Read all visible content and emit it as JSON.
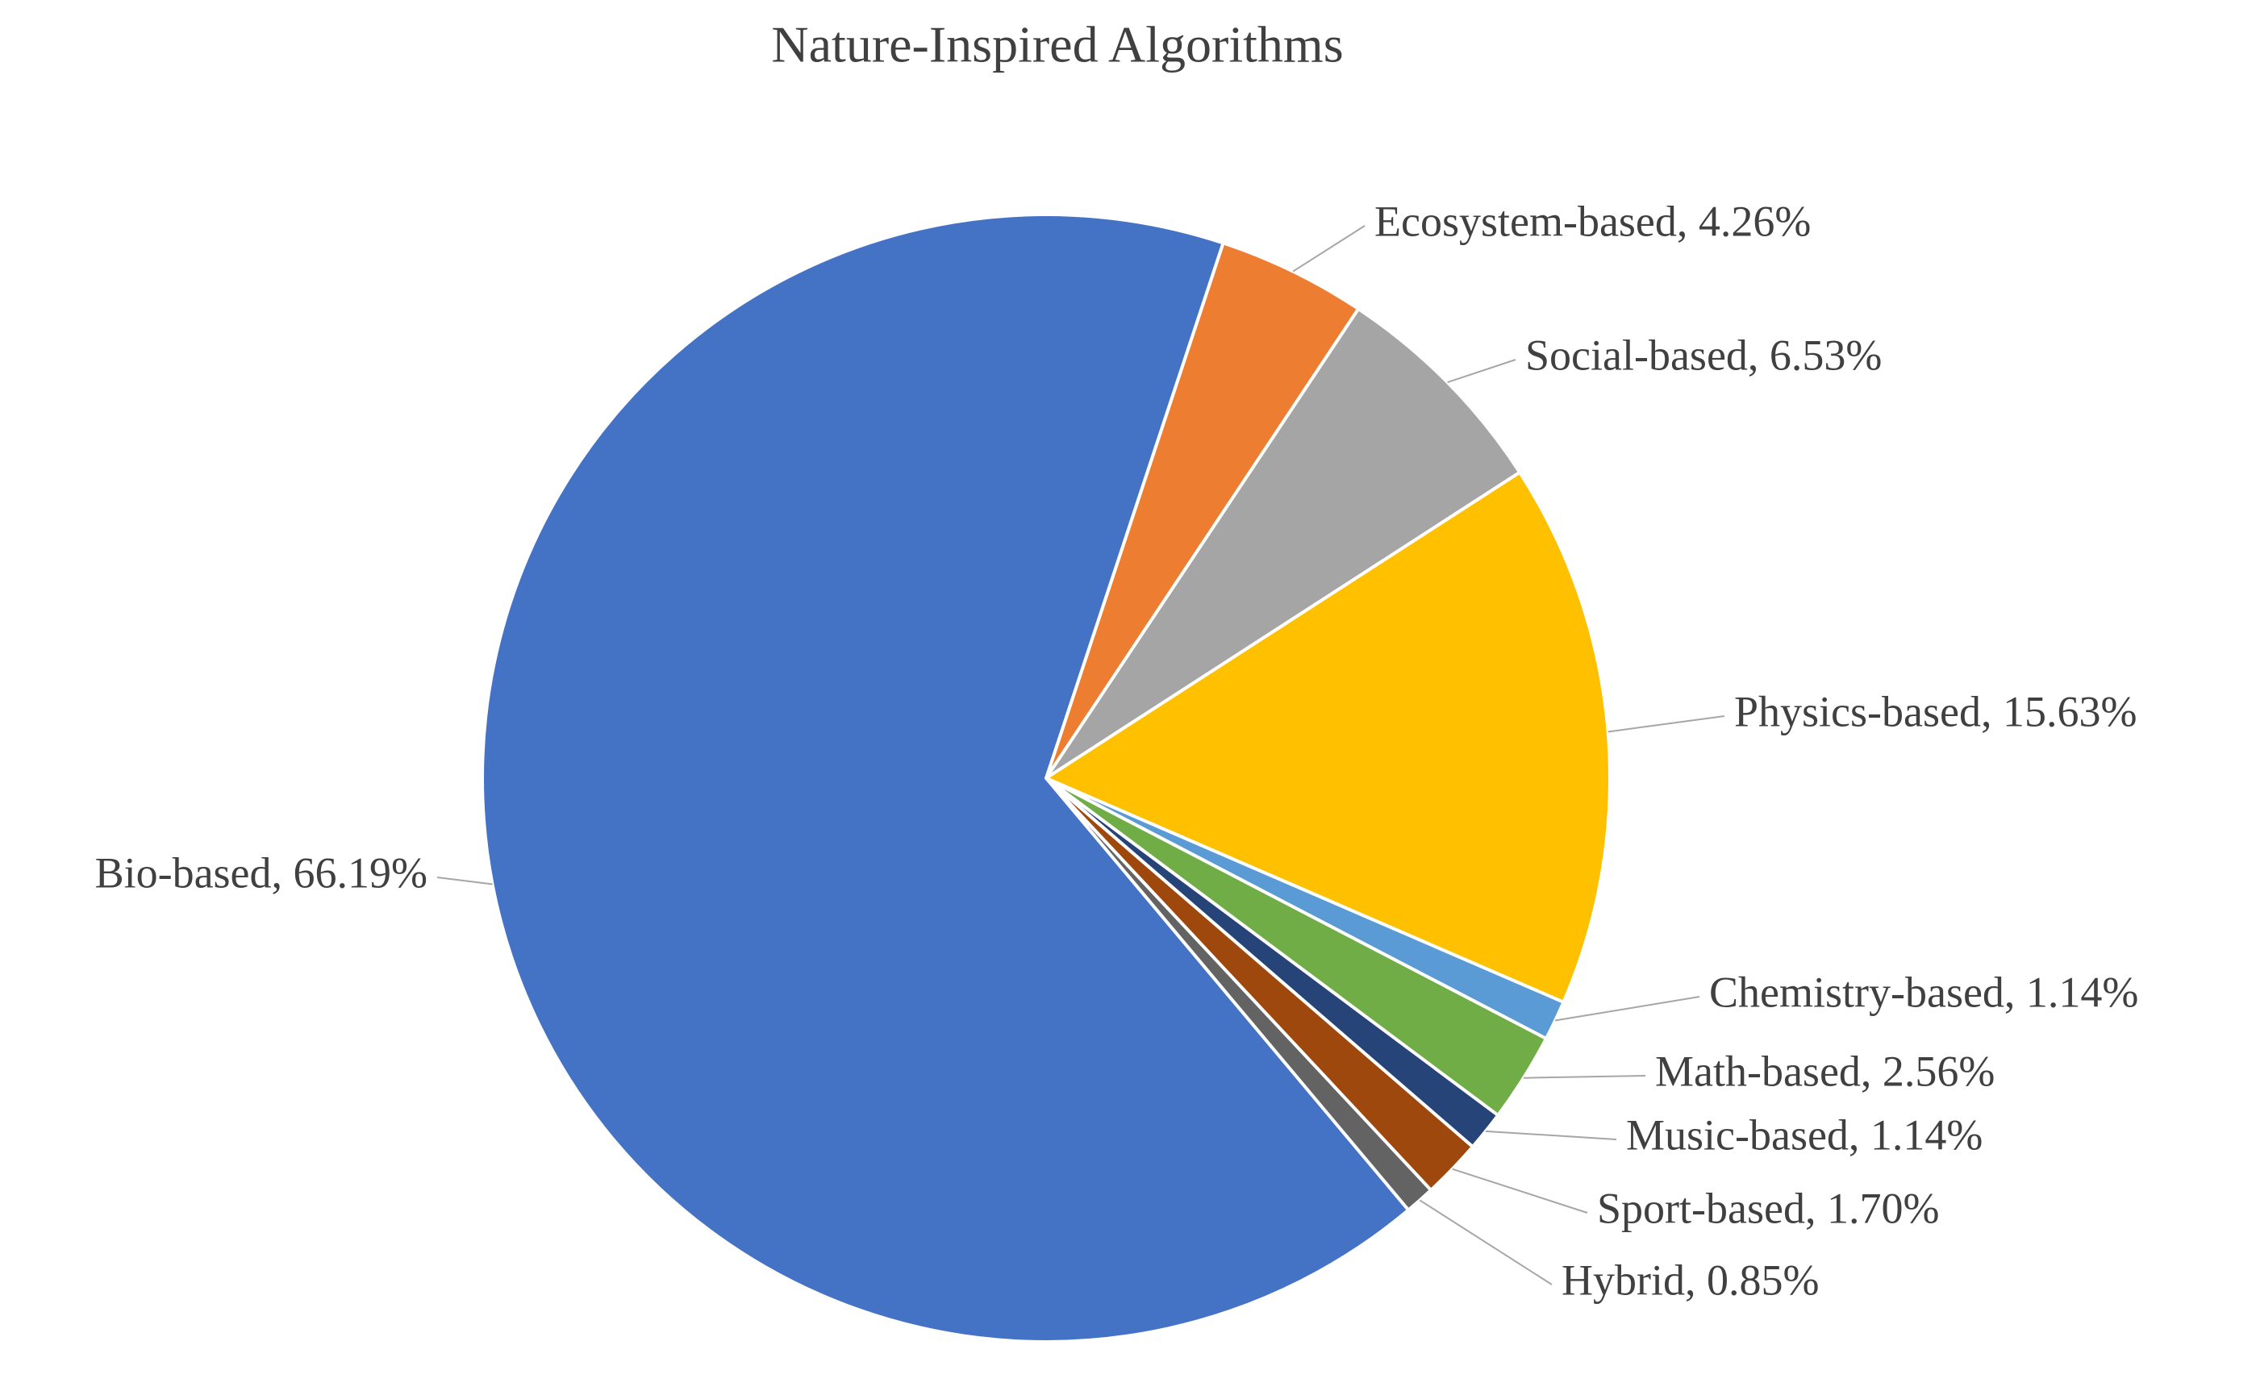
{
  "chart_data": {
    "type": "pie",
    "title": "Nature-Inspired Algorithms",
    "values": [
      4.26,
      6.53,
      15.63,
      1.14,
      2.56,
      1.14,
      1.7,
      0.85,
      66.19
    ],
    "value_labels": [
      "Ecosystem-based, 4.26%",
      "Social-based, 6.53%",
      "Physics-based, 15.63%",
      "Chemistry-based, 1.14%",
      "Math-based, 2.56%",
      "Music-based, 1.14%",
      "Sport-based, 1.70%",
      "Hybrid, 0.85%",
      "Bio-based, 66.19%"
    ],
    "colors": [
      "#ed7d31",
      "#a5a5a5",
      "#ffc000",
      "#5b9bd5",
      "#70ad47",
      "#264478",
      "#9e480e",
      "#636363",
      "#4472c4"
    ]
  }
}
